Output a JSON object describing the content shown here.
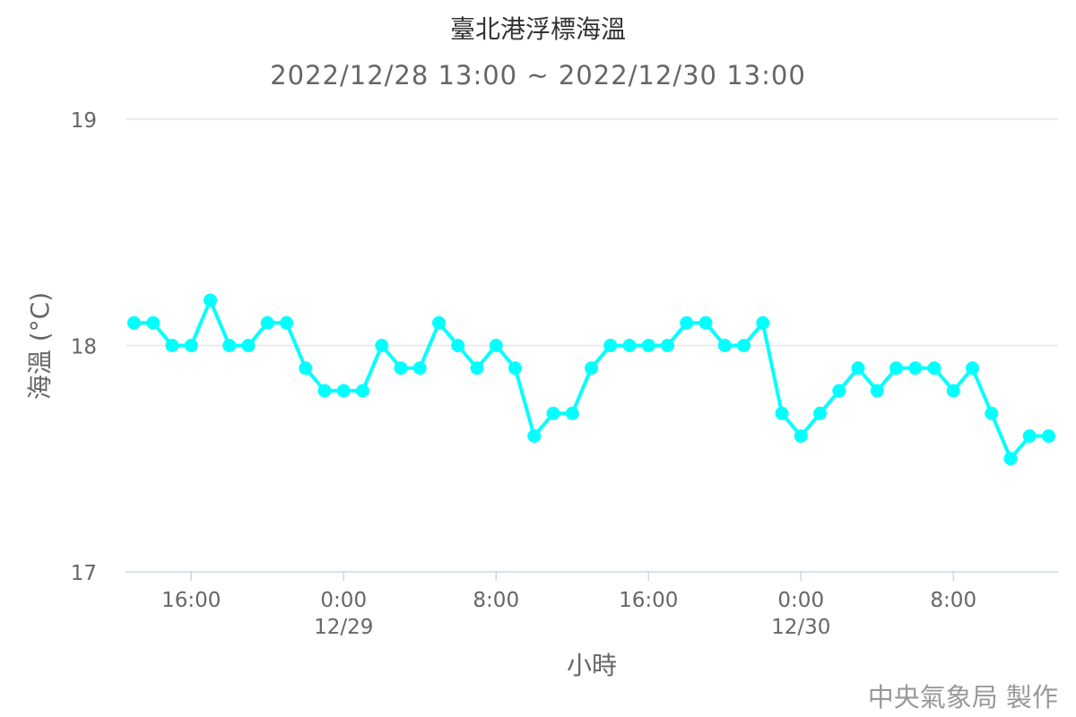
{
  "chart_data": {
    "type": "line",
    "title": "臺北港浮標海溫",
    "subtitle": "2022/12/28 13:00 ~ 2022/12/30 13:00",
    "xlabel": "小時",
    "ylabel": "海溫 (°C)",
    "ylim": [
      17,
      19
    ],
    "yticks": [
      "17",
      "18",
      "19"
    ],
    "xticks": [
      {
        "time": "2022/12/28 16:00",
        "label": "16:00",
        "date": ""
      },
      {
        "time": "2022/12/29 00:00",
        "label": "0:00",
        "date": "12/29"
      },
      {
        "time": "2022/12/29 08:00",
        "label": "8:00",
        "date": ""
      },
      {
        "time": "2022/12/29 16:00",
        "label": "16:00",
        "date": ""
      },
      {
        "time": "2022/12/30 00:00",
        "label": "0:00",
        "date": "12/30"
      },
      {
        "time": "2022/12/30 08:00",
        "label": "8:00",
        "date": ""
      }
    ],
    "grid": true,
    "color": "#00FFFF",
    "x": [
      "2022/12/28 13:00",
      "2022/12/28 14:00",
      "2022/12/28 15:00",
      "2022/12/28 16:00",
      "2022/12/28 17:00",
      "2022/12/28 18:00",
      "2022/12/28 19:00",
      "2022/12/28 20:00",
      "2022/12/28 21:00",
      "2022/12/28 22:00",
      "2022/12/28 23:00",
      "2022/12/29 00:00",
      "2022/12/29 01:00",
      "2022/12/29 02:00",
      "2022/12/29 03:00",
      "2022/12/29 04:00",
      "2022/12/29 05:00",
      "2022/12/29 06:00",
      "2022/12/29 07:00",
      "2022/12/29 08:00",
      "2022/12/29 09:00",
      "2022/12/29 10:00",
      "2022/12/29 11:00",
      "2022/12/29 12:00",
      "2022/12/29 13:00",
      "2022/12/29 14:00",
      "2022/12/29 15:00",
      "2022/12/29 16:00",
      "2022/12/29 17:00",
      "2022/12/29 18:00",
      "2022/12/29 19:00",
      "2022/12/29 20:00",
      "2022/12/29 21:00",
      "2022/12/29 22:00",
      "2022/12/29 23:00",
      "2022/12/30 00:00",
      "2022/12/30 01:00",
      "2022/12/30 02:00",
      "2022/12/30 03:00",
      "2022/12/30 04:00",
      "2022/12/30 05:00",
      "2022/12/30 06:00",
      "2022/12/30 07:00",
      "2022/12/30 08:00",
      "2022/12/30 09:00",
      "2022/12/30 10:00",
      "2022/12/30 11:00",
      "2022/12/30 12:00",
      "2022/12/30 13:00"
    ],
    "values": [
      18.1,
      18.1,
      18.0,
      18.0,
      18.2,
      18.0,
      18.0,
      18.1,
      18.1,
      17.9,
      17.8,
      17.8,
      17.8,
      18.0,
      17.9,
      17.9,
      18.1,
      18.0,
      17.9,
      18.0,
      17.9,
      17.6,
      17.7,
      17.7,
      17.9,
      18.0,
      18.0,
      18.0,
      18.0,
      18.1,
      18.1,
      18.0,
      18.0,
      18.1,
      17.7,
      17.6,
      17.7,
      17.8,
      17.9,
      17.8,
      17.9,
      17.9,
      17.9,
      17.8,
      17.9,
      17.7,
      17.5,
      17.6,
      17.6
    ]
  },
  "credit": "中央氣象局 製作"
}
